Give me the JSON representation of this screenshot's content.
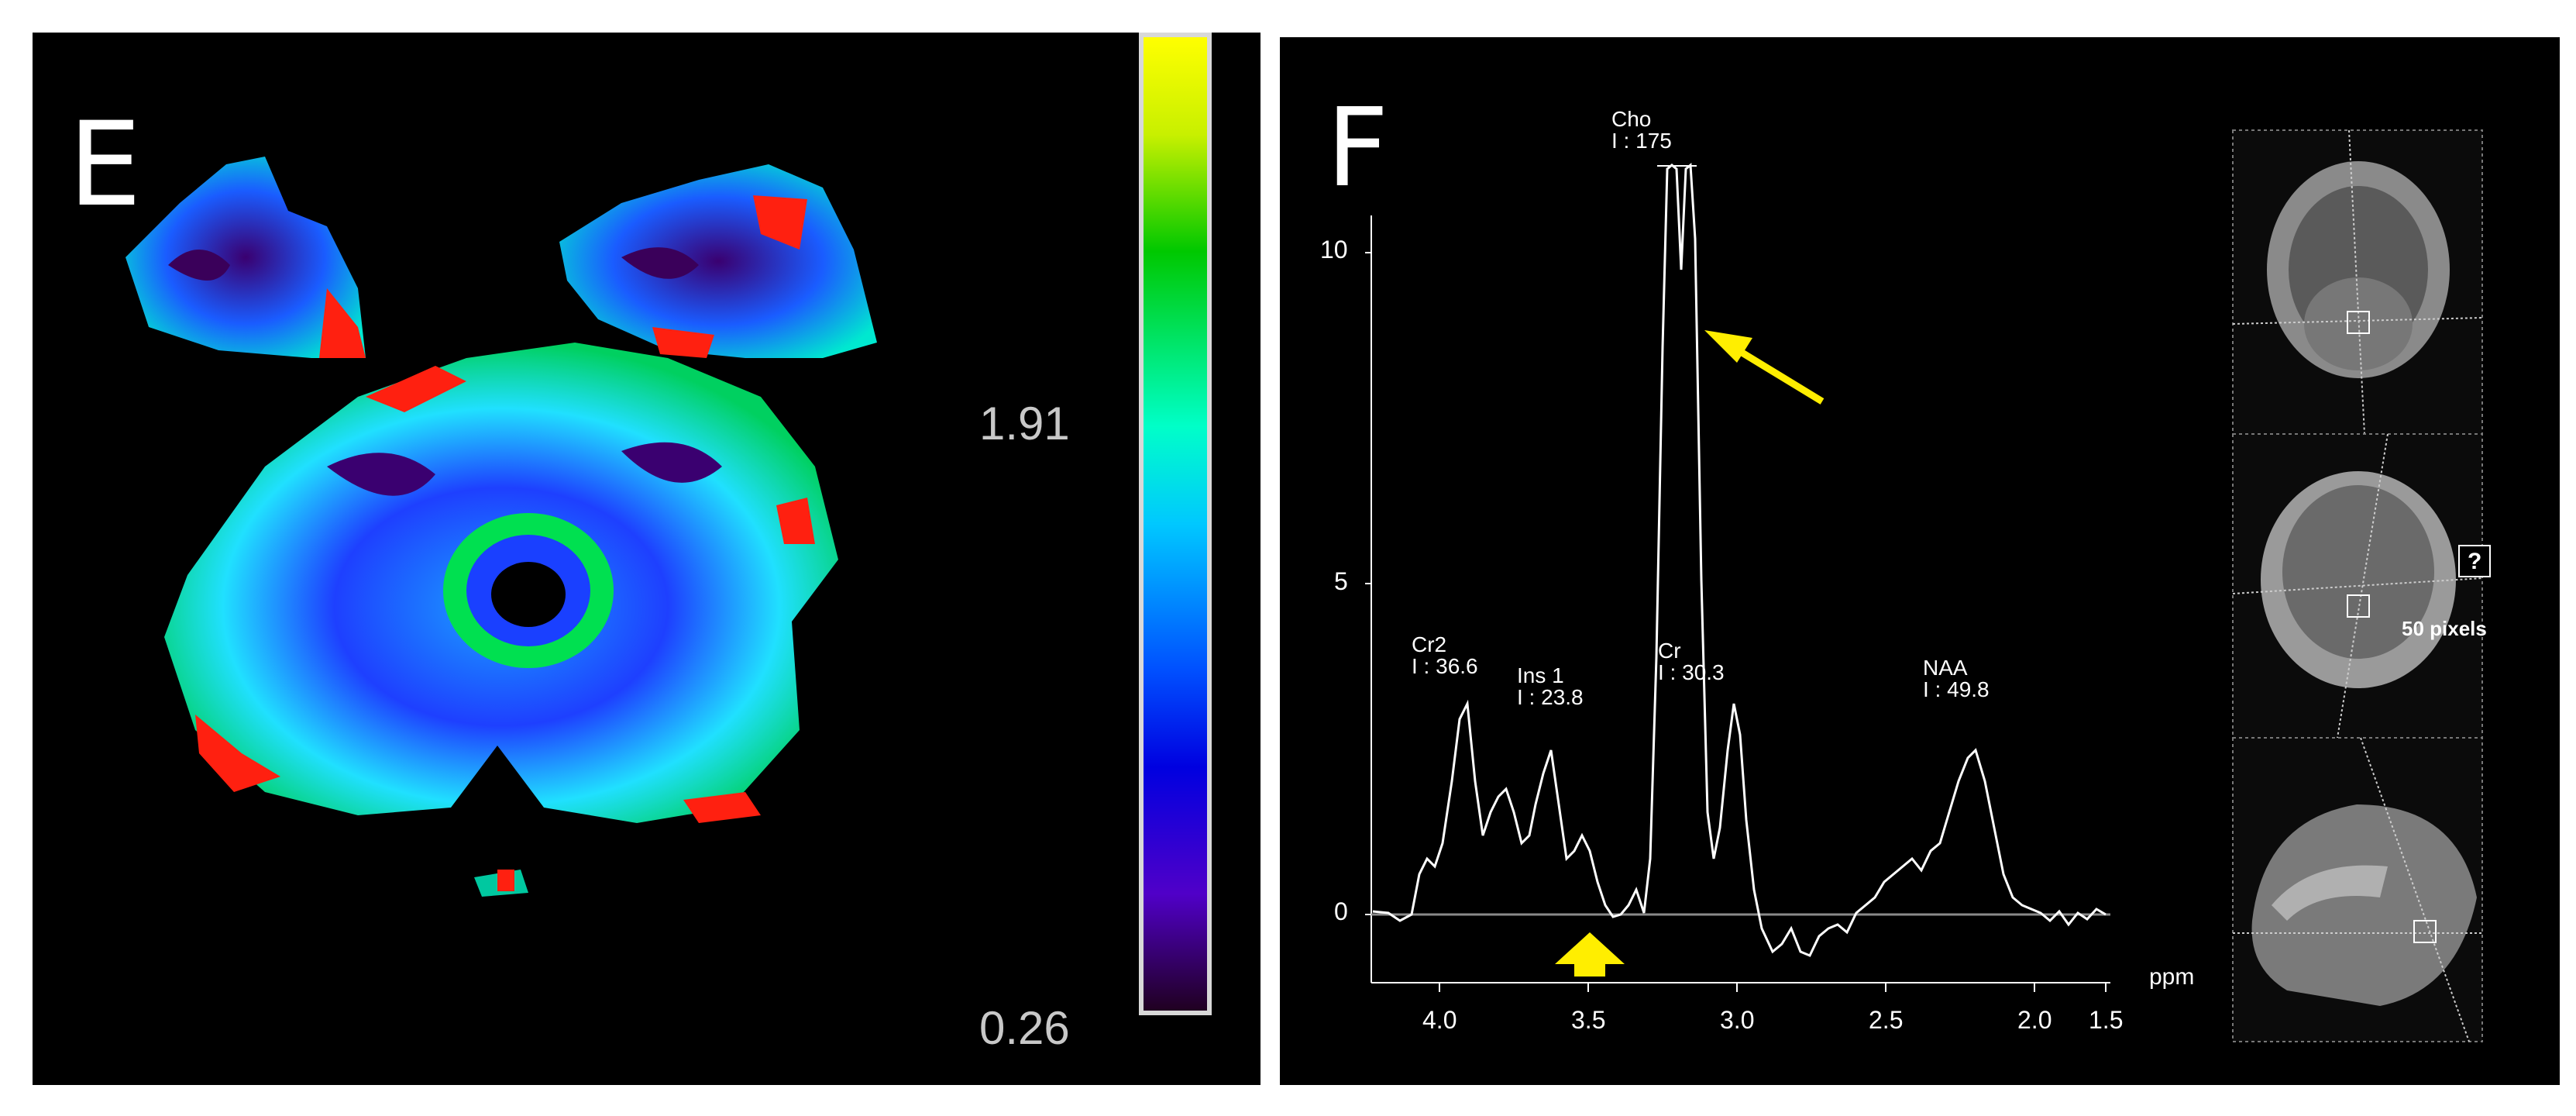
{
  "panel_e": {
    "letter": "E",
    "colorbar": {
      "max_label": "1.91",
      "min_label": "0.26"
    }
  },
  "panel_f": {
    "letter": "F",
    "x_axis": {
      "unit": "ppm",
      "ticks": [
        "4.0",
        "3.5",
        "3.0",
        "2.5",
        "2.0",
        "1.5"
      ]
    },
    "y_axis": {
      "ticks": [
        "10",
        "5",
        "0"
      ]
    },
    "peaks": [
      {
        "name": "Cho",
        "integral": "I : 175"
      },
      {
        "name": "Cr2",
        "integral": "I : 36.6"
      },
      {
        "name": "Ins 1",
        "integral": "I : 23.8"
      },
      {
        "name": "Cr",
        "integral": "I : 30.3"
      },
      {
        "name": "NAA",
        "integral": "I : 49.8"
      }
    ],
    "thumbnails": {
      "help_label": "?",
      "scale_label": "50 pixels"
    },
    "colors": {
      "arrow": "#ffee00",
      "trace": "#ffffff"
    }
  }
}
